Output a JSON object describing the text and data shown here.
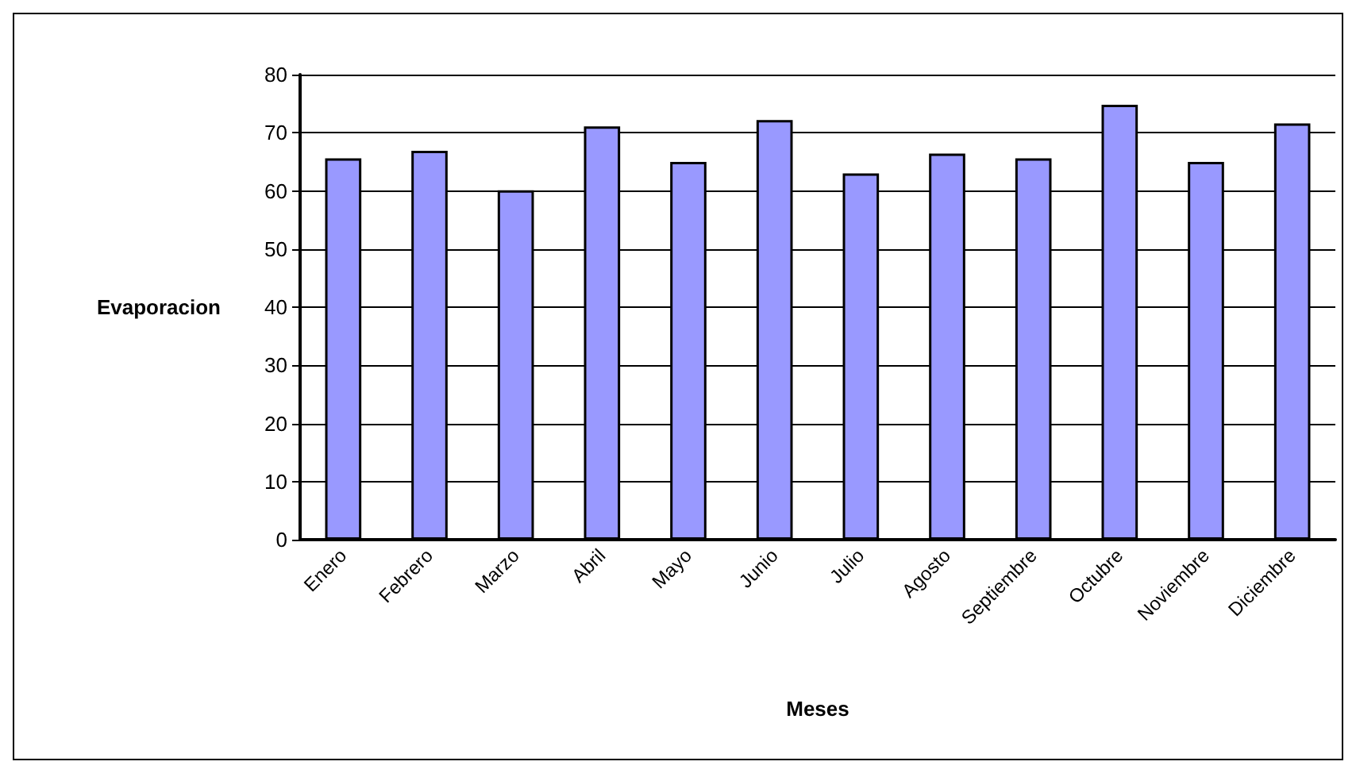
{
  "chart_data": {
    "type": "bar",
    "xlabel": "Meses",
    "ylabel": "Evaporacion",
    "categories": [
      "Enero",
      "Febrero",
      "Marzo",
      "Abril",
      "Mayo",
      "Junio",
      "Julio",
      "Agosto",
      "Septiembre",
      "Octubre",
      "Noviembre",
      "Diciembre"
    ],
    "values": [
      65.6,
      66.9,
      60.1,
      71.1,
      65.0,
      72.2,
      63.0,
      66.4,
      65.6,
      74.8,
      65.0,
      71.6
    ],
    "color": "#9999ff",
    "ylim": [
      0,
      80
    ],
    "yticks": [
      0,
      10,
      20,
      30,
      40,
      50,
      60,
      70,
      80
    ],
    "grid": "y"
  }
}
